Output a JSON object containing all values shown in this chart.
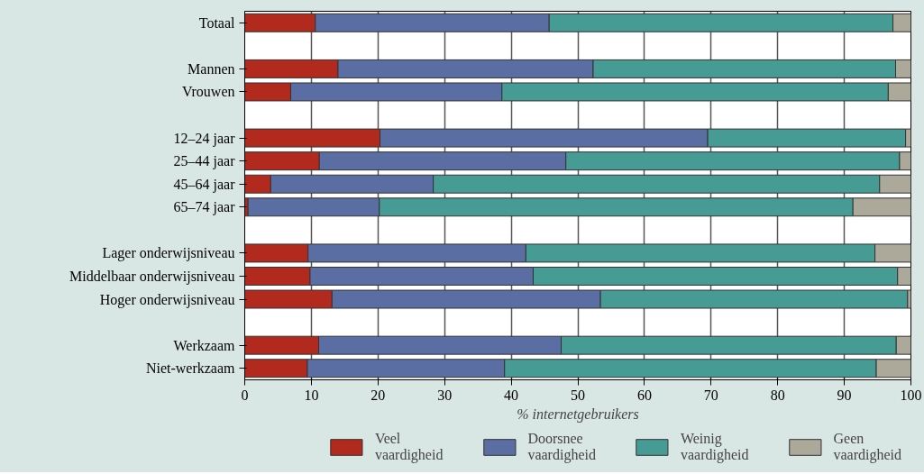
{
  "chart_data": {
    "type": "bar",
    "orientation": "horizontal",
    "stacked": true,
    "categories": [
      "Totaal",
      null,
      "Mannen",
      "Vrouwen",
      null,
      "12–24 jaar",
      "25–44 jaar",
      "45–64 jaar",
      "65–74 jaar",
      null,
      "Lager onderwijsniveau",
      "Middelbaar onderwijsniveau",
      "Hoger onderwijsniveau",
      null,
      "Werkzaam",
      "Niet-werkzaam"
    ],
    "series": [
      {
        "name": "Veel vaardigheid",
        "color": "#b22a1e",
        "values": [
          10.6,
          null,
          14.0,
          6.9,
          null,
          20.3,
          11.2,
          3.9,
          0.5,
          null,
          9.5,
          9.8,
          13.1,
          null,
          11.1,
          9.4
        ]
      },
      {
        "name": "Doorsnee vaardigheid",
        "color": "#5b6ea3",
        "values": [
          35.1,
          null,
          38.3,
          31.7,
          null,
          49.2,
          37.0,
          24.4,
          19.7,
          null,
          32.7,
          33.5,
          40.3,
          null,
          36.4,
          29.6
        ]
      },
      {
        "name": "Weinig vaardigheid",
        "color": "#469b94",
        "values": [
          51.6,
          null,
          45.4,
          58.0,
          null,
          29.7,
          50.1,
          67.0,
          71.1,
          null,
          52.4,
          54.7,
          46.1,
          null,
          50.3,
          55.8
        ]
      },
      {
        "name": "Geen vaardigheid",
        "color": "#aca99a",
        "values": [
          2.7,
          null,
          2.3,
          3.4,
          null,
          0.8,
          1.7,
          4.7,
          8.7,
          null,
          5.4,
          2.0,
          0.5,
          null,
          2.2,
          5.2
        ]
      }
    ],
    "xlabel": "% internetgebruikers",
    "xlim": [
      0,
      100
    ],
    "xticks": [
      0,
      10,
      20,
      30,
      40,
      50,
      60,
      70,
      80,
      90,
      100
    ],
    "grid": "x",
    "legend": "bottom"
  }
}
